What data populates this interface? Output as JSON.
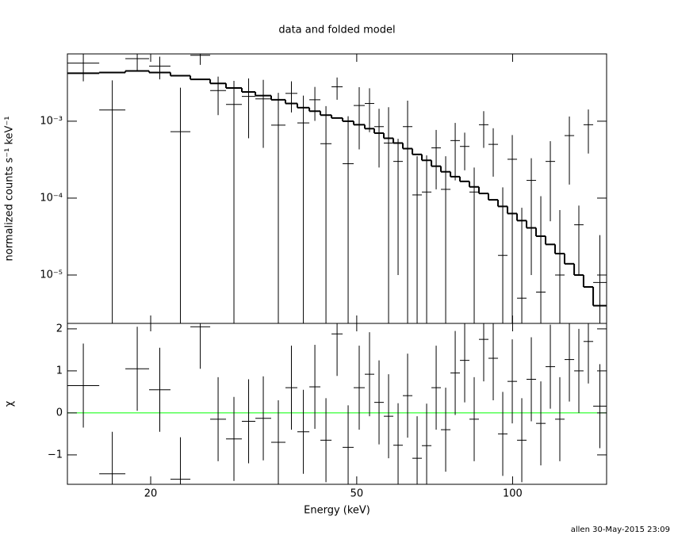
{
  "chart_data": {
    "type": "spectrum",
    "title": "data and folded model",
    "xlabel": "Energy (keV)",
    "xscale": "log",
    "xlim": [
      13.81,
      151.9
    ],
    "xticks": [
      20,
      50,
      100
    ],
    "bins": [
      13.81,
      15.91,
      17.87,
      19.86,
      21.84,
      23.86,
      26.06,
      27.96,
      30.0,
      31.86,
      34.18,
      36.42,
      38.4,
      40.5,
      42.54,
      44.7,
      46.96,
      49.32,
      51.82,
      54.06,
      56.4,
      58.84,
      61.38,
      64.04,
      66.8,
      69.7,
      72.7,
      75.86,
      79.12,
      82.54,
      86.1,
      89.82,
      93.72,
      97.76,
      102.0,
      106.4,
      111.0,
      115.8,
      120.8,
      126.0,
      131.5,
      137.1,
      143.1,
      151.9
    ],
    "color": "#000000",
    "panels": [
      {
        "ylabel": "normalized counts s⁻¹ keV⁻¹",
        "yscale": "log",
        "ylim": [
          2.35e-06,
          0.0075
        ],
        "yticks": [
          {
            "value": 1e-05,
            "label": "10⁻⁵"
          },
          {
            "value": 0.0001,
            "label": "10⁻⁴"
          },
          {
            "value": 0.001,
            "label": "10⁻³"
          }
        ],
        "data": {
          "values": [
            0.0057,
            0.0014,
            0.0065,
            0.0052,
            0.00073,
            0.0072,
            0.0025,
            0.00165,
            0.0021,
            0.00195,
            0.00089,
            0.0023,
            0.00095,
            0.0019,
            0.00051,
            0.0028,
            0.00028,
            0.0016,
            0.0017,
            0.00085,
            0.00052,
            0.0003,
            0.00085,
            0.00011,
            0.00012,
            0.00045,
            0.00013,
            0.00056,
            0.00047,
            0.00012,
            0.0009,
            0.0005,
            1.8e-05,
            0.00032,
            5e-06,
            0.00017,
            6e-06,
            0.0003,
            1e-05,
            0.00065,
            4.5e-05,
            0.0009,
            8e-06
          ],
          "errors": [
            0.0024,
            0.002,
            0.0019,
            0.0017,
            0.002,
            0.0018,
            0.0013,
            0.0017,
            0.0015,
            0.0015,
            0.00145,
            0.001,
            0.0012,
            0.00089,
            0.00106,
            0.0009,
            0.00088,
            0.00117,
            0.00098,
            0.0006,
            0.001,
            0.00029,
            0.001,
            0.00024,
            0.00024,
            0.00032,
            0.00022,
            0.00039,
            0.00024,
            0.00013,
            0.00045,
            0.00031,
            0.00012,
            0.00034,
            7e-05,
            0.00016,
            0.0001,
            0.00025,
            6e-05,
            0.0005,
            3.5e-05,
            0.00052,
            2.5e-05
          ]
        },
        "model": {
          "values": [
            0.0042,
            0.0043,
            0.0045,
            0.0043,
            0.0039,
            0.0035,
            0.0031,
            0.0027,
            0.0024,
            0.00215,
            0.0019,
            0.0017,
            0.0015,
            0.00135,
            0.0012,
            0.0011,
            0.001,
            0.0009,
            0.0008,
            0.0007,
            0.0006,
            0.00052,
            0.00044,
            0.00037,
            0.00031,
            0.00026,
            0.00022,
            0.00019,
            0.000165,
            0.00014,
            0.000115,
            9.5e-05,
            7.8e-05,
            6.3e-05,
            5.1e-05,
            4.1e-05,
            3.2e-05,
            2.5e-05,
            1.9e-05,
            1.4e-05,
            1e-05,
            7e-06,
            4e-06
          ]
        }
      },
      {
        "ylabel": "χ",
        "yscale": "linear",
        "ylim": [
          -1.7,
          2.13
        ],
        "yticks": [
          {
            "value": -1,
            "label": "−1"
          },
          0,
          1,
          2
        ],
        "reference": {
          "value": 0,
          "color": "#00ff00"
        },
        "data": {
          "values": [
            0.65,
            -1.45,
            1.05,
            0.55,
            -1.58,
            2.05,
            -0.15,
            -0.62,
            -0.2,
            -0.13,
            -0.7,
            0.6,
            -0.45,
            0.62,
            -0.65,
            1.88,
            -0.82,
            0.6,
            0.92,
            0.25,
            -0.08,
            -0.77,
            0.41,
            -1.08,
            -0.78,
            0.6,
            -0.4,
            0.95,
            1.25,
            -0.15,
            1.75,
            1.3,
            -0.5,
            0.75,
            -0.65,
            0.8,
            -0.25,
            1.1,
            -0.15,
            1.27,
            1.0,
            1.7,
            0.16
          ],
          "errors": [
            1,
            1,
            1,
            1,
            1,
            1,
            1,
            1,
            1,
            1,
            1,
            1,
            1,
            1,
            1,
            1,
            1,
            1,
            1,
            1,
            1,
            1,
            1,
            1,
            1,
            1,
            1,
            1,
            1,
            1,
            1,
            1,
            1,
            1,
            1,
            1,
            1,
            1,
            1,
            1,
            1,
            1,
            1
          ]
        }
      }
    ],
    "footer": "allen 30-May-2015 23:09"
  }
}
